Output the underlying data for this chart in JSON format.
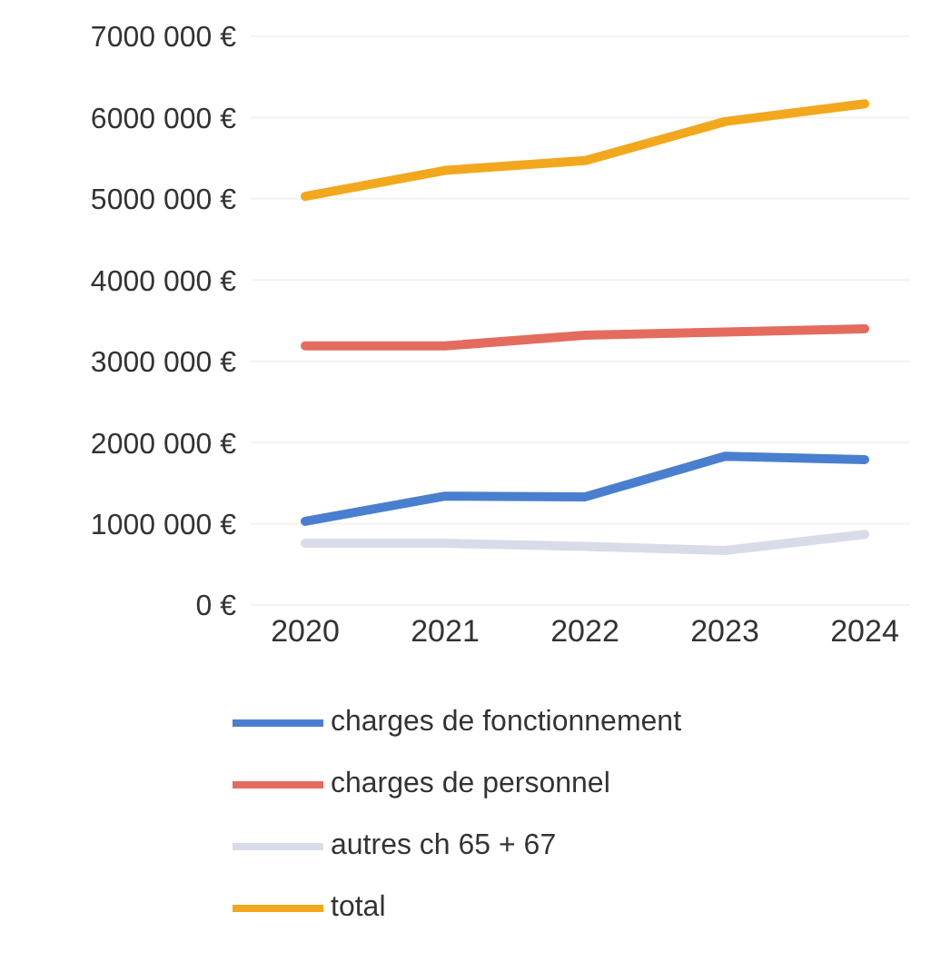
{
  "chart_data": {
    "type": "line",
    "categories": [
      "2020",
      "2021",
      "2022",
      "2023",
      "2024"
    ],
    "series": [
      {
        "name": "charges de fonctionnement",
        "color": "#4a7fcf",
        "values": [
          1030000,
          1340000,
          1330000,
          1830000,
          1790000
        ]
      },
      {
        "name": "charges de personnel",
        "color": "#e36c5f",
        "values": [
          3190000,
          3190000,
          3320000,
          3360000,
          3400000
        ]
      },
      {
        "name": "autres ch 65 + 67",
        "color": "#d8dce8",
        "values": [
          760000,
          760000,
          720000,
          670000,
          870000
        ]
      },
      {
        "name": "total",
        "color": "#f2a81d",
        "values": [
          5030000,
          5350000,
          5470000,
          5950000,
          6170000
        ]
      }
    ],
    "ylim": [
      0,
      7000000
    ],
    "yticks": [
      {
        "value": 0,
        "label": "0 €"
      },
      {
        "value": 1000000,
        "label": "1000 000 €"
      },
      {
        "value": 2000000,
        "label": "2000 000 €"
      },
      {
        "value": 3000000,
        "label": "3000 000 €"
      },
      {
        "value": 4000000,
        "label": "4000 000 €"
      },
      {
        "value": 5000000,
        "label": "5000 000 €"
      },
      {
        "value": 6000000,
        "label": "6000 000 €"
      },
      {
        "value": 7000000,
        "label": "7000 000 €"
      }
    ],
    "grid": "y",
    "legend": "bottom",
    "marker": "none",
    "line_style": "solid"
  }
}
